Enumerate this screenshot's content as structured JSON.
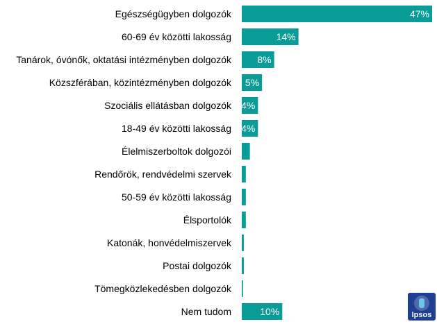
{
  "colors": {
    "bar": "#0a9d97",
    "label_text": "#000000",
    "value_text": "#ffffff",
    "logo_bg": "#1f3f93"
  },
  "logo": {
    "text": "Ipsos",
    "icon": "ipsos-logo-icon"
  },
  "chart_data": {
    "type": "bar",
    "orientation": "horizontal",
    "grid": false,
    "xlim": [
      0,
      47
    ],
    "categories": [
      "Egészségügyben dolgozók",
      "60-69 év közötti lakosság",
      "Tanárok, óvónők, oktatási intézményben dolgozók",
      "Közszférában, közintézményben dolgozók",
      "Szociális ellátásban dolgozók",
      "18-49 év közötti lakosság",
      "Élelmiszerboltok dolgozói",
      "Rendőrök, rendvédelmi szervek",
      "50-59 év közötti lakosság",
      "Élsportolók",
      "Katonák, honvédelmiszervek",
      "Postai dolgozók",
      "Tömegközlekedésben dolgozók",
      "Nem tudom"
    ],
    "values": [
      47,
      14,
      8,
      5,
      4,
      4,
      2,
      1,
      1,
      1,
      0.5,
      0.5,
      0.3,
      10
    ],
    "data_labels": [
      "47%",
      "14%",
      "8%",
      "5%",
      "4%",
      "4%",
      "",
      "",
      "",
      "",
      "",
      "",
      "",
      "10%"
    ]
  }
}
